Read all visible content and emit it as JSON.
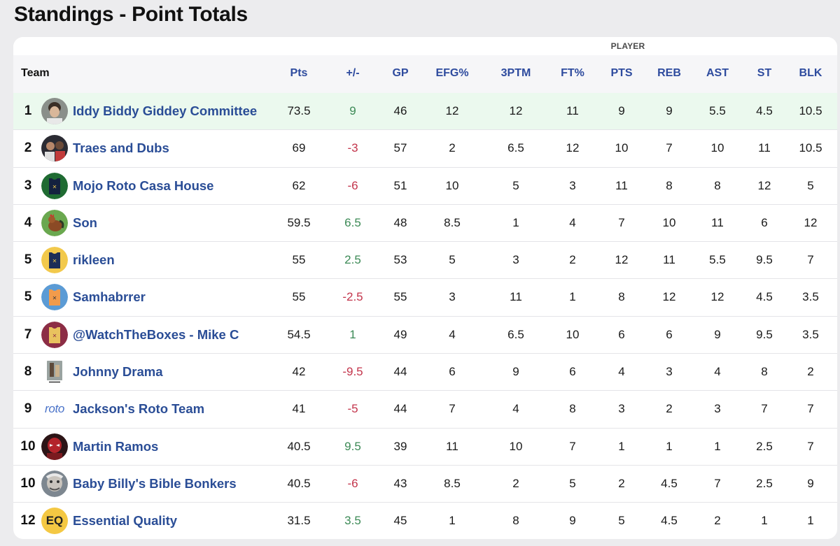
{
  "page": {
    "title": "Standings - Point Totals"
  },
  "table": {
    "group_label": "PLAYER",
    "headers": {
      "team": "Team",
      "pts": "Pts",
      "plus_minus": "+/-",
      "gp": "GP",
      "efg": "EFG%",
      "threeptm": "3PTM",
      "ft": "FT%",
      "player_pts": "PTS",
      "reb": "REB",
      "ast": "AST",
      "st": "ST",
      "blk": "BLK"
    },
    "rows": [
      {
        "rank": "1",
        "team": "Iddy Biddy Giddey Committee",
        "avatar": "photo-portrait-icon",
        "pts": "73.5",
        "pm": "9",
        "pm_sign": "pos",
        "gp": "46",
        "efg": "12",
        "threeptm": "12",
        "ft": "11",
        "ppts": "9",
        "reb": "9",
        "ast": "5.5",
        "st": "4.5",
        "blk": "10.5"
      },
      {
        "rank": "2",
        "team": "Traes and Dubs",
        "avatar": "photo-group-icon",
        "pts": "69",
        "pm": "-3",
        "pm_sign": "neg",
        "gp": "57",
        "efg": "2",
        "threeptm": "6.5",
        "ft": "12",
        "ppts": "10",
        "reb": "7",
        "ast": "10",
        "st": "11",
        "blk": "10.5"
      },
      {
        "rank": "3",
        "team": "Mojo Roto Casa House",
        "avatar": "jersey-green-icon",
        "pts": "62",
        "pm": "-6",
        "pm_sign": "neg",
        "gp": "51",
        "efg": "10",
        "threeptm": "5",
        "ft": "3",
        "ppts": "11",
        "reb": "8",
        "ast": "8",
        "st": "12",
        "blk": "5"
      },
      {
        "rank": "4",
        "team": "Son",
        "avatar": "rooster-icon",
        "pts": "59.5",
        "pm": "6.5",
        "pm_sign": "pos",
        "gp": "48",
        "efg": "8.5",
        "threeptm": "1",
        "ft": "4",
        "ppts": "7",
        "reb": "10",
        "ast": "11",
        "st": "6",
        "blk": "12"
      },
      {
        "rank": "5",
        "team": "rikleen",
        "avatar": "jersey-navy-icon",
        "pts": "55",
        "pm": "2.5",
        "pm_sign": "pos",
        "gp": "53",
        "efg": "5",
        "threeptm": "3",
        "ft": "2",
        "ppts": "12",
        "reb": "11",
        "ast": "5.5",
        "st": "9.5",
        "blk": "7"
      },
      {
        "rank": "5",
        "team": "Samhabrrer",
        "avatar": "jersey-orange-icon",
        "pts": "55",
        "pm": "-2.5",
        "pm_sign": "neg",
        "gp": "55",
        "efg": "3",
        "threeptm": "11",
        "ft": "1",
        "ppts": "8",
        "reb": "12",
        "ast": "12",
        "st": "4.5",
        "blk": "3.5"
      },
      {
        "rank": "7",
        "team": "@WatchTheBoxes - Mike C",
        "avatar": "jersey-maroon-icon",
        "pts": "54.5",
        "pm": "1",
        "pm_sign": "pos",
        "gp": "49",
        "efg": "4",
        "threeptm": "6.5",
        "ft": "10",
        "ppts": "6",
        "reb": "6",
        "ast": "9",
        "st": "9.5",
        "blk": "3.5"
      },
      {
        "rank": "8",
        "team": "Johnny Drama",
        "avatar": "victory-poster-icon",
        "pts": "42",
        "pm": "-9.5",
        "pm_sign": "neg",
        "gp": "44",
        "efg": "6",
        "threeptm": "9",
        "ft": "6",
        "ppts": "4",
        "reb": "3",
        "ast": "4",
        "st": "8",
        "blk": "2"
      },
      {
        "rank": "9",
        "team": "Jackson's Roto Team",
        "avatar": "roto-logo-icon",
        "pts": "41",
        "pm": "-5",
        "pm_sign": "neg",
        "gp": "44",
        "efg": "7",
        "threeptm": "4",
        "ft": "8",
        "ppts": "3",
        "reb": "2",
        "ast": "3",
        "st": "7",
        "blk": "7"
      },
      {
        "rank": "10",
        "team": "Martin Ramos",
        "avatar": "red-hero-icon",
        "pts": "40.5",
        "pm": "9.5",
        "pm_sign": "pos",
        "gp": "39",
        "efg": "11",
        "threeptm": "10",
        "ft": "7",
        "ppts": "1",
        "reb": "1",
        "ast": "1",
        "st": "2.5",
        "blk": "7"
      },
      {
        "rank": "10",
        "team": "Baby Billy's Bible Bonkers",
        "avatar": "photo-face-icon",
        "pts": "40.5",
        "pm": "-6",
        "pm_sign": "neg",
        "gp": "43",
        "efg": "8.5",
        "threeptm": "2",
        "ft": "5",
        "ppts": "2",
        "reb": "4.5",
        "ast": "7",
        "st": "2.5",
        "blk": "9"
      },
      {
        "rank": "12",
        "team": "Essential Quality",
        "avatar": "eq-logo-icon",
        "pts": "31.5",
        "pm": "3.5",
        "pm_sign": "pos",
        "gp": "45",
        "efg": "1",
        "threeptm": "8",
        "ft": "9",
        "ppts": "5",
        "reb": "4.5",
        "ast": "2",
        "st": "1",
        "blk": "1"
      }
    ],
    "logo_text": {
      "roto": "roto",
      "eq": "EQ"
    }
  },
  "colors": {
    "team_link": "#2a4d96",
    "header_stat": "#2e4b9e",
    "positive": "#3c8a56",
    "negative": "#c3344b",
    "highlight_row": "#ebf9ee"
  }
}
